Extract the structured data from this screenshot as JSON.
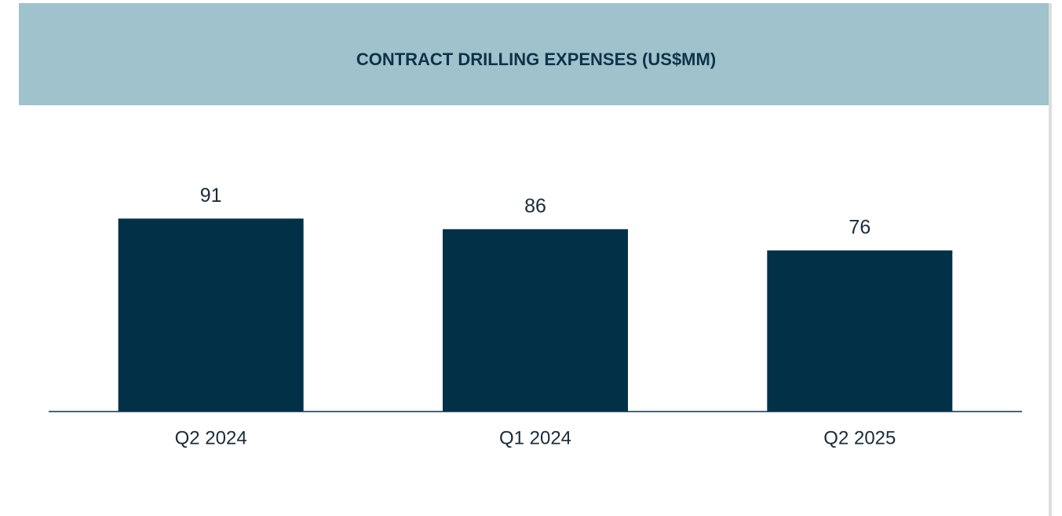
{
  "chart_data": {
    "type": "bar",
    "title": "CONTRACT DRILLING EXPENSES (US$MM)",
    "categories": [
      "Q2 2024",
      "Q1 2024",
      "Q2 2025"
    ],
    "values": [
      91,
      86,
      76
    ],
    "color": "#023047"
  }
}
